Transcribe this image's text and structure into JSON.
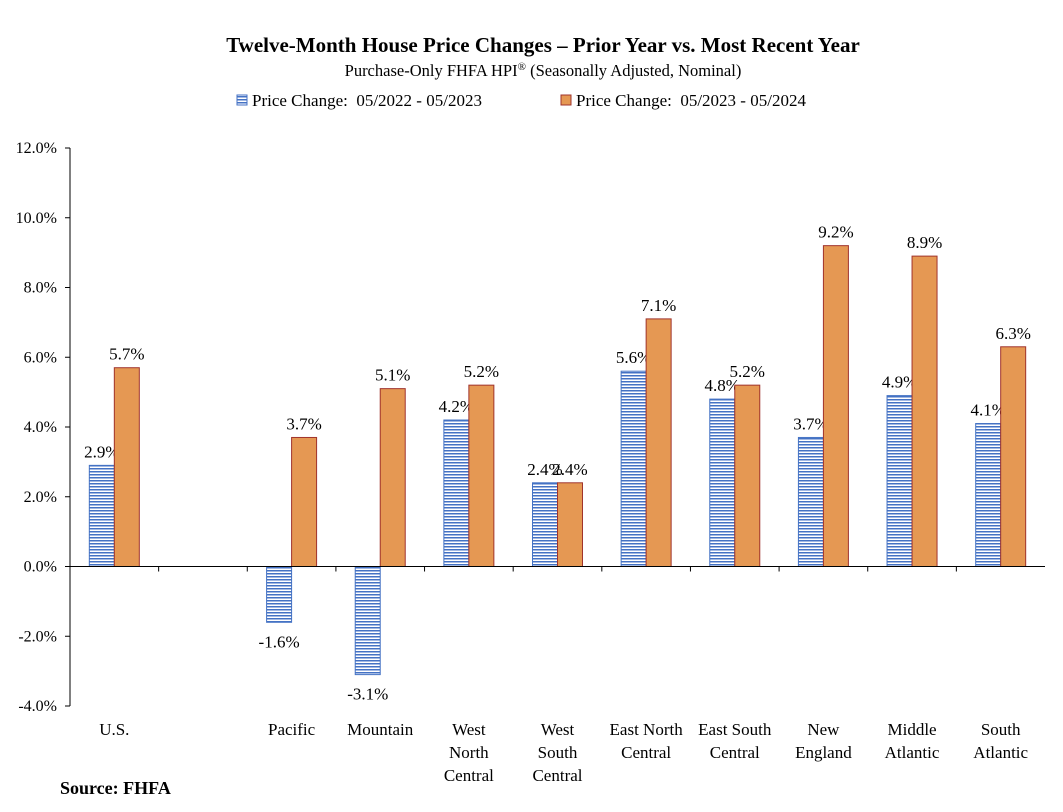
{
  "chart_data": {
    "type": "bar",
    "title": "Twelve-Month House Price Changes – Prior Year vs. Most Recent Year",
    "subtitle": "Purchase-Only FHFA HPI",
    "subtitle_sup": "®",
    "subtitle_tail": " (Seasonally Adjusted, Nominal)",
    "source": "Source: FHFA",
    "categories": [
      [
        "U.S."
      ],
      [
        ""
      ],
      [
        "Pacific"
      ],
      [
        "Mountain"
      ],
      [
        "West",
        "North",
        "Central"
      ],
      [
        "West",
        "South",
        "Central"
      ],
      [
        "East North",
        "Central"
      ],
      [
        "East South",
        "Central"
      ],
      [
        "New",
        "England"
      ],
      [
        "Middle",
        "Atlantic"
      ],
      [
        "South",
        "Atlantic"
      ]
    ],
    "series": [
      {
        "name": "Price Change:  05/2022 - 05/2023",
        "color": "#4472C4",
        "pattern": "horizontal-stripes",
        "values": [
          2.9,
          null,
          -1.6,
          -3.1,
          4.2,
          2.4,
          5.6,
          4.8,
          3.7,
          4.9,
          4.1
        ],
        "labels": [
          "2.9%",
          "",
          "-1.6%",
          "-3.1%",
          "4.2%",
          "2.4%",
          "5.6%",
          "4.8%",
          "3.7%",
          "4.9%",
          "4.1%"
        ]
      },
      {
        "name": "Price Change:  05/2023 - 05/2024",
        "color": "#E59853",
        "border": "#A0332C",
        "values": [
          5.7,
          null,
          3.7,
          5.1,
          5.2,
          2.4,
          7.1,
          5.2,
          9.2,
          8.9,
          6.3
        ],
        "labels": [
          "5.7%",
          "",
          "3.7%",
          "5.1%",
          "5.2%",
          "2.4%",
          "7.1%",
          "5.2%",
          "9.2%",
          "8.9%",
          "6.3%"
        ]
      }
    ],
    "yticks": [
      "12.0%",
      "10.0%",
      "8.0%",
      "6.0%",
      "4.0%",
      "2.0%",
      "0.0%",
      "-2.0%",
      "-4.0%"
    ],
    "ylim": [
      -4,
      12
    ],
    "grid": false,
    "legend_position": "top"
  }
}
